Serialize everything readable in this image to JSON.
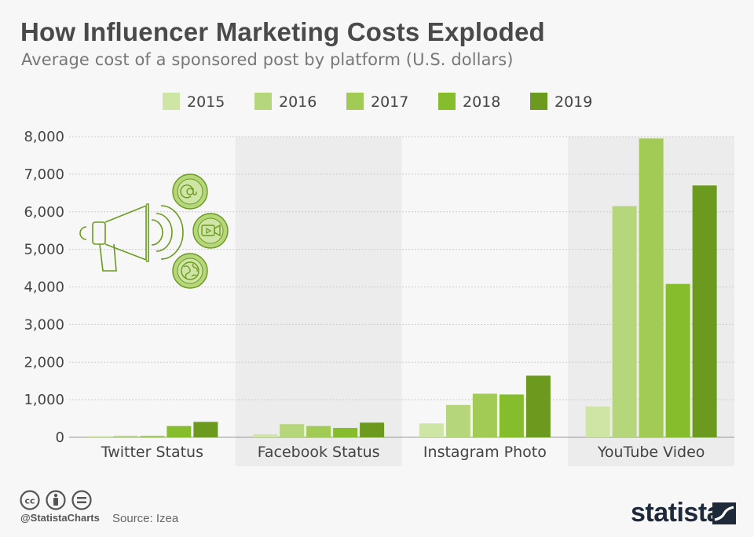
{
  "title": "How Influencer Marketing Costs Exploded",
  "subtitle": "Average cost of a sponsored post by platform (U.S. dollars)",
  "footer": {
    "handle": "@StatistaCharts",
    "source": "Source: Izea",
    "brand": "statista"
  },
  "colors": {
    "2015": "#cfe5a6",
    "2016": "#b6d67c",
    "2017": "#a1cb55",
    "2018": "#86bd2c",
    "2019": "#6b9a1e",
    "band": "#ececec",
    "grid": "#cccccc"
  },
  "icons": [
    "megaphone-icon",
    "at-sign-icon",
    "video-camera-icon",
    "globe-icon",
    "creative-commons-icon",
    "attribution-icon",
    "no-derivatives-icon",
    "statista-logo-icon"
  ],
  "chart_data": {
    "type": "bar",
    "title": "How Influencer Marketing Costs Exploded",
    "subtitle": "Average cost of a sponsored post by platform (U.S. dollars)",
    "categories": [
      "Twitter Status",
      "Facebook Status",
      "Instagram Photo",
      "YouTube Video"
    ],
    "series": [
      {
        "name": "2015",
        "values": [
          30,
          80,
          370,
          820
        ]
      },
      {
        "name": "2016",
        "values": [
          40,
          350,
          860,
          6150
        ]
      },
      {
        "name": "2017",
        "values": [
          40,
          300,
          1160,
          7950
        ]
      },
      {
        "name": "2018",
        "values": [
          300,
          250,
          1140,
          4080
        ]
      },
      {
        "name": "2019",
        "values": [
          410,
          390,
          1640,
          6700
        ]
      }
    ],
    "ylim": [
      0,
      8000
    ],
    "yticks": [
      "0",
      "1,000",
      "2,000",
      "3,000",
      "4,000",
      "5,000",
      "6,000",
      "7,000",
      "8,000"
    ],
    "xlabel": "",
    "ylabel": "",
    "legend_position": "top",
    "grid": true
  }
}
